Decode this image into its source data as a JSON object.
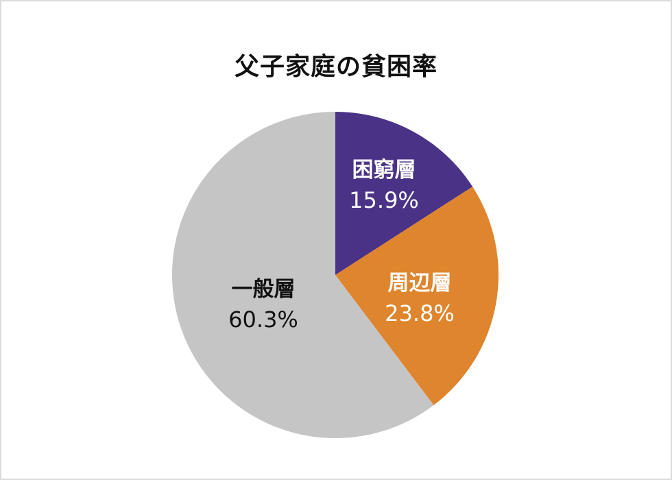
{
  "chart_data": {
    "type": "pie",
    "title": "父子家庭の貧困率",
    "categories": [
      "困窮層",
      "周辺層",
      "一般層"
    ],
    "values": [
      15.9,
      23.8,
      60.3
    ],
    "labels": [
      "15.9%",
      "23.8%",
      "60.3%"
    ],
    "colors": [
      "#4a3287",
      "#df852d",
      "#c5c5c5"
    ],
    "label_colors": [
      "#ffffff",
      "#ffffff",
      "#111111"
    ],
    "start_angle_deg": 0,
    "direction": "clockwise",
    "legend": "none (labels inside slices)"
  },
  "title": "父子家庭の貧困率",
  "slices": [
    {
      "name": "困窮層",
      "pct": "15.9%"
    },
    {
      "name": "周辺層",
      "pct": "23.8%"
    },
    {
      "name": "一般層",
      "pct": "60.3%"
    }
  ]
}
